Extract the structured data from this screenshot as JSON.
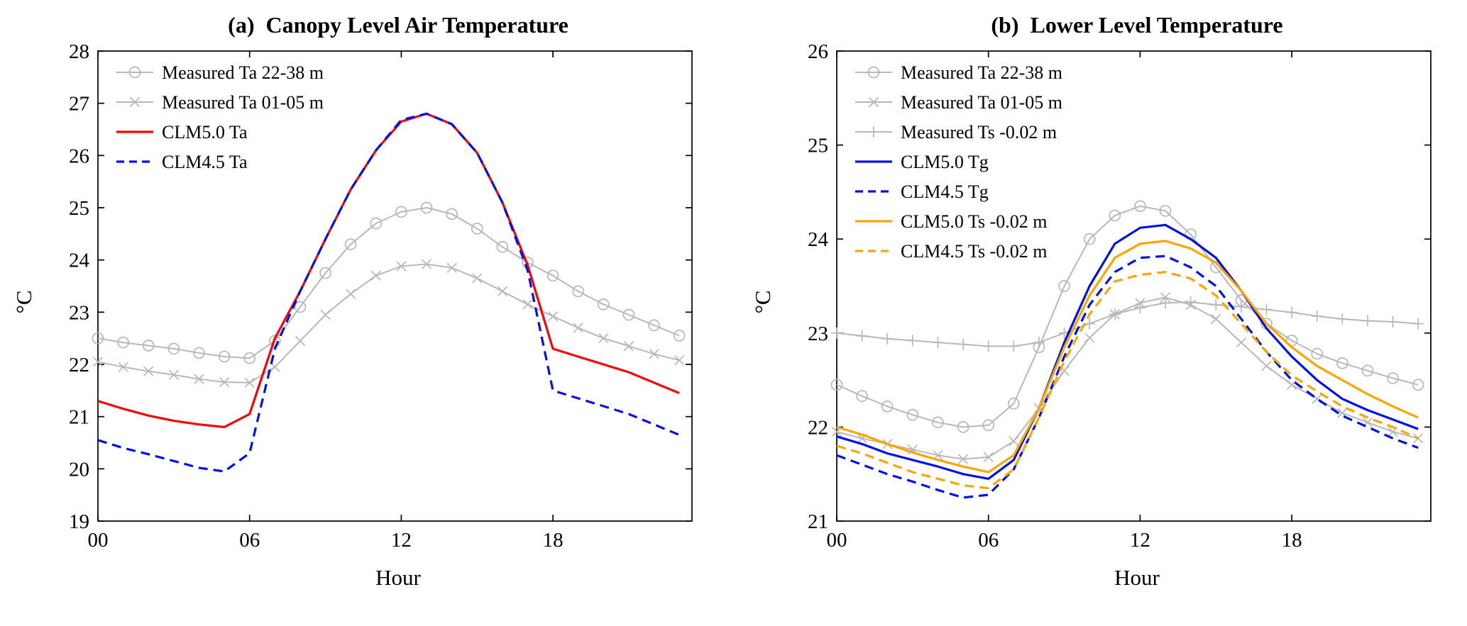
{
  "page": {
    "background": "#ffffff"
  },
  "chart_data": [
    {
      "type": "line",
      "panel": "a",
      "title": "(a)  Canopy Level Air Temperature",
      "xlabel": "Hour",
      "ylabel": "°C",
      "xlim": [
        0,
        23.5
      ],
      "ylim": [
        19,
        28
      ],
      "xticks": [
        0,
        6,
        12,
        18
      ],
      "xtick_labels": [
        "00",
        "06",
        "12",
        "18"
      ],
      "yticks": [
        19,
        20,
        21,
        22,
        23,
        24,
        25,
        26,
        27,
        28
      ],
      "grid": false,
      "legend_position": "top-left",
      "x": [
        0,
        1,
        2,
        3,
        4,
        5,
        6,
        7,
        8,
        9,
        10,
        11,
        12,
        13,
        14,
        15,
        16,
        17,
        18,
        19,
        20,
        21,
        22,
        23
      ],
      "series": [
        {
          "name": "Measured Ta 22-38 m",
          "color": "#b8b8b8",
          "style": "solid",
          "marker": "circle",
          "width": 2,
          "values": [
            22.5,
            22.42,
            22.36,
            22.3,
            22.22,
            22.15,
            22.12,
            22.45,
            23.1,
            23.75,
            24.3,
            24.7,
            24.92,
            25.0,
            24.88,
            24.6,
            24.25,
            23.95,
            23.7,
            23.4,
            23.15,
            22.95,
            22.75,
            22.55
          ]
        },
        {
          "name": "Measured Ta 01-05 m",
          "color": "#b8b8b8",
          "style": "solid",
          "marker": "x",
          "width": 2,
          "values": [
            22.05,
            21.95,
            21.87,
            21.8,
            21.72,
            21.66,
            21.65,
            21.95,
            22.45,
            22.95,
            23.35,
            23.7,
            23.88,
            23.92,
            23.85,
            23.65,
            23.4,
            23.15,
            22.92,
            22.7,
            22.5,
            22.35,
            22.2,
            22.08
          ]
        },
        {
          "name": "CLM5.0 Ta",
          "color": "#ff0000",
          "style": "solid",
          "marker": "none",
          "width": 3.2,
          "values": [
            21.3,
            21.15,
            21.02,
            20.92,
            20.85,
            20.8,
            21.05,
            22.5,
            23.4,
            24.4,
            25.35,
            26.1,
            26.65,
            26.8,
            26.6,
            26.05,
            25.1,
            23.9,
            22.3,
            22.15,
            22.0,
            21.85,
            21.65,
            21.45
          ]
        },
        {
          "name": "CLM4.5 Ta",
          "color": "#0011ee",
          "style": "dashed",
          "marker": "none",
          "width": 3.2,
          "values": [
            20.55,
            20.4,
            20.28,
            20.15,
            20.02,
            19.95,
            20.3,
            22.3,
            23.4,
            24.4,
            25.35,
            26.1,
            26.68,
            26.8,
            26.6,
            26.05,
            25.1,
            23.8,
            21.5,
            21.35,
            21.2,
            21.05,
            20.85,
            20.65
          ]
        }
      ]
    },
    {
      "type": "line",
      "panel": "b",
      "title": "(b)  Lower Level Temperature",
      "xlabel": "Hour",
      "ylabel": "°C",
      "xlim": [
        0,
        23.5
      ],
      "ylim": [
        21,
        26
      ],
      "xticks": [
        0,
        6,
        12,
        18
      ],
      "xtick_labels": [
        "00",
        "06",
        "12",
        "18"
      ],
      "yticks": [
        21,
        22,
        23,
        24,
        25,
        26
      ],
      "grid": false,
      "legend_position": "top-left",
      "x": [
        0,
        1,
        2,
        3,
        4,
        5,
        6,
        7,
        8,
        9,
        10,
        11,
        12,
        13,
        14,
        15,
        16,
        17,
        18,
        19,
        20,
        21,
        22,
        23
      ],
      "series": [
        {
          "name": "Measured Ta 22-38 m",
          "color": "#b8b8b8",
          "style": "solid",
          "marker": "circle",
          "width": 2,
          "values": [
            22.45,
            22.33,
            22.22,
            22.13,
            22.05,
            22.0,
            22.02,
            22.25,
            22.85,
            23.5,
            24.0,
            24.25,
            24.35,
            24.3,
            24.05,
            23.7,
            23.35,
            23.1,
            22.92,
            22.78,
            22.68,
            22.6,
            22.52,
            22.45
          ]
        },
        {
          "name": "Measured Ta 01-05 m",
          "color": "#b8b8b8",
          "style": "solid",
          "marker": "x",
          "width": 2,
          "values": [
            21.95,
            21.88,
            21.82,
            21.76,
            21.7,
            21.66,
            21.68,
            21.85,
            22.2,
            22.6,
            22.95,
            23.2,
            23.32,
            23.38,
            23.3,
            23.15,
            22.9,
            22.65,
            22.45,
            22.3,
            22.15,
            22.05,
            21.95,
            21.88
          ]
        },
        {
          "name": "Measured Ts -0.02 m",
          "color": "#b8b8b8",
          "style": "solid",
          "marker": "plus",
          "width": 2,
          "values": [
            23.0,
            22.97,
            22.94,
            22.92,
            22.9,
            22.88,
            22.86,
            22.86,
            22.9,
            23.0,
            23.1,
            23.2,
            23.27,
            23.32,
            23.33,
            23.3,
            23.28,
            23.25,
            23.22,
            23.18,
            23.15,
            23.13,
            23.12,
            23.1
          ]
        },
        {
          "name": "CLM5.0 Tg",
          "color": "#0011ee",
          "style": "solid",
          "marker": "none",
          "width": 3.2,
          "values": [
            21.9,
            21.82,
            21.72,
            21.65,
            21.58,
            21.5,
            21.45,
            21.65,
            22.2,
            22.9,
            23.5,
            23.95,
            24.12,
            24.15,
            24.0,
            23.8,
            23.45,
            23.05,
            22.75,
            22.5,
            22.3,
            22.18,
            22.08,
            21.98
          ]
        },
        {
          "name": "CLM4.5 Tg",
          "color": "#0011ee",
          "style": "dashed",
          "marker": "none",
          "width": 3.2,
          "values": [
            21.7,
            21.6,
            21.5,
            21.42,
            21.33,
            21.25,
            21.28,
            21.55,
            22.1,
            22.75,
            23.3,
            23.65,
            23.8,
            23.82,
            23.7,
            23.5,
            23.15,
            22.8,
            22.5,
            22.3,
            22.12,
            22.0,
            21.88,
            21.78
          ]
        },
        {
          "name": "CLM5.0 Ts -0.02 m",
          "color": "#ffa500",
          "style": "solid",
          "marker": "none",
          "width": 3.2,
          "values": [
            22.0,
            21.92,
            21.82,
            21.73,
            21.65,
            21.58,
            21.52,
            21.7,
            22.2,
            22.85,
            23.4,
            23.8,
            23.95,
            23.98,
            23.9,
            23.75,
            23.45,
            23.1,
            22.85,
            22.65,
            22.5,
            22.35,
            22.22,
            22.1
          ]
        },
        {
          "name": "CLM4.5 Ts -0.02 m",
          "color": "#ffa500",
          "style": "dashed",
          "marker": "none",
          "width": 3.2,
          "values": [
            21.8,
            21.72,
            21.62,
            21.52,
            21.45,
            21.38,
            21.35,
            21.55,
            22.1,
            22.7,
            23.2,
            23.55,
            23.62,
            23.65,
            23.58,
            23.4,
            23.1,
            22.8,
            22.55,
            22.38,
            22.22,
            22.1,
            22.0,
            21.88
          ]
        }
      ]
    }
  ]
}
